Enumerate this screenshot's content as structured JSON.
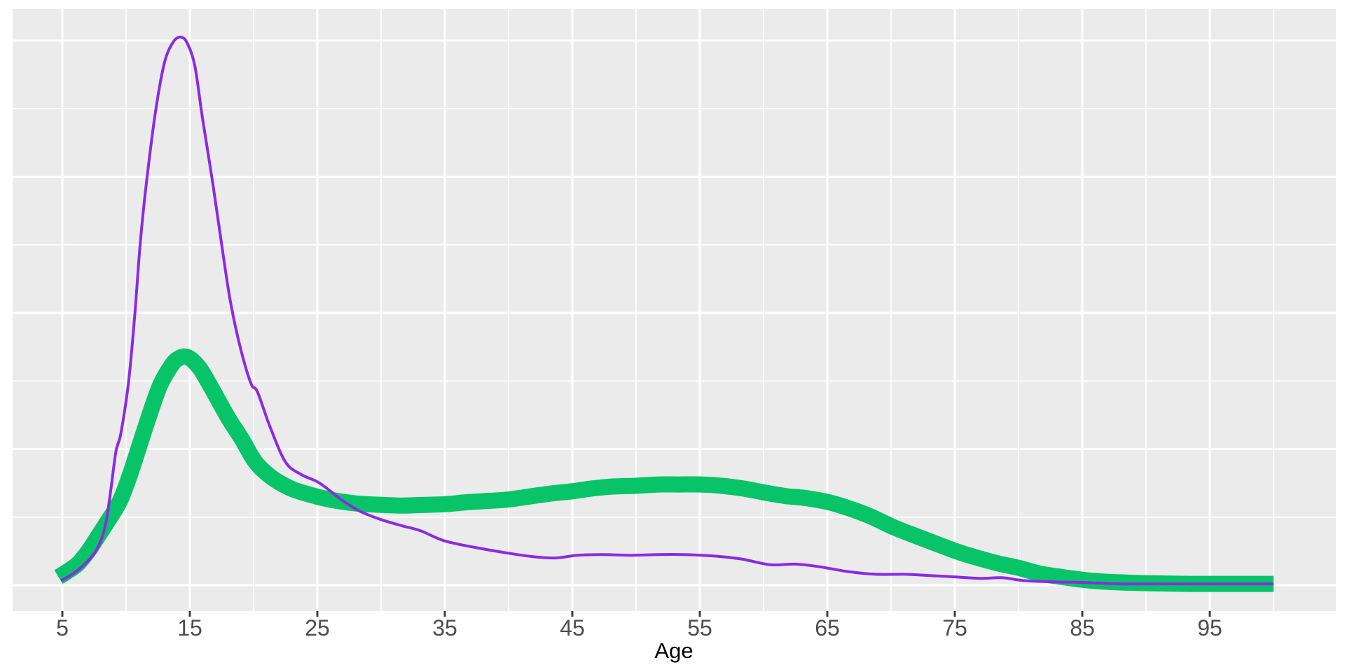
{
  "figure": {
    "kind": "density plot",
    "background": "#FFFFFF",
    "panel_background": "#EBEBEB",
    "grid_color": "#FFFFFF",
    "tick_mark_color": "#404040",
    "tick_label_color": "#4D4D4D",
    "axis_title_color": "#000000"
  },
  "x_axis": {
    "title": "Age",
    "tick_values": [
      5,
      15,
      25,
      35,
      45,
      55,
      65,
      75,
      85,
      95
    ],
    "tick_labels": [
      "5",
      "15",
      "25",
      "35",
      "45",
      "55",
      "65",
      "75",
      "85",
      "95"
    ],
    "minor_values": [
      10,
      20,
      30,
      40,
      50,
      60,
      70,
      80,
      90,
      100
    ]
  },
  "y_axis": {
    "title": "",
    "tick_labels": [],
    "major_values": [
      0,
      0.02,
      0.04,
      0.06,
      0.08
    ],
    "minor_values": [
      0.01,
      0.03,
      0.05,
      0.07
    ]
  },
  "chart_data": {
    "type": "line",
    "title": "",
    "xlabel": "Age",
    "ylabel": "",
    "x_range_shown": [
      5,
      100
    ],
    "ylim": [
      0,
      0.088
    ],
    "grid": true,
    "legend": "none",
    "series": [
      {
        "name": "green-thick-density",
        "color": "#07C468",
        "stroke_width": 23,
        "peak": {
          "age": 14.6,
          "density": 0.0336
        },
        "points": [
          [
            4.7,
            0.0012
          ],
          [
            5.3,
            0.0019
          ],
          [
            6.2,
            0.0031
          ],
          [
            7.0,
            0.0049
          ],
          [
            7.8,
            0.0072
          ],
          [
            8.6,
            0.0095
          ],
          [
            9.5,
            0.0123
          ],
          [
            10.3,
            0.0162
          ],
          [
            11.1,
            0.0208
          ],
          [
            11.9,
            0.0254
          ],
          [
            12.7,
            0.0295
          ],
          [
            13.6,
            0.0324
          ],
          [
            14.1,
            0.0333
          ],
          [
            14.6,
            0.0336
          ],
          [
            15.1,
            0.0332
          ],
          [
            15.8,
            0.0318
          ],
          [
            16.6,
            0.0293
          ],
          [
            17.4,
            0.0266
          ],
          [
            18.2,
            0.024
          ],
          [
            19.1,
            0.0214
          ],
          [
            20.1,
            0.0182
          ],
          [
            21.1,
            0.0163
          ],
          [
            22.1,
            0.015
          ],
          [
            23.2,
            0.014
          ],
          [
            25.0,
            0.013
          ],
          [
            26.5,
            0.0124
          ],
          [
            28.1,
            0.012
          ],
          [
            30.0,
            0.0118
          ],
          [
            31.7,
            0.0117
          ],
          [
            33.4,
            0.0118
          ],
          [
            35.0,
            0.0119
          ],
          [
            36.8,
            0.0122
          ],
          [
            38.6,
            0.0124
          ],
          [
            40.0,
            0.0126
          ],
          [
            41.9,
            0.0131
          ],
          [
            43.5,
            0.0135
          ],
          [
            45.0,
            0.0138
          ],
          [
            46.5,
            0.0142
          ],
          [
            48.2,
            0.0145
          ],
          [
            50.0,
            0.0146
          ],
          [
            51.8,
            0.0148
          ],
          [
            53.4,
            0.0148
          ],
          [
            55.1,
            0.0148
          ],
          [
            56.7,
            0.0146
          ],
          [
            58.4,
            0.0142
          ],
          [
            60.1,
            0.0136
          ],
          [
            61.7,
            0.0131
          ],
          [
            63.3,
            0.0128
          ],
          [
            65.1,
            0.0122
          ],
          [
            66.7,
            0.0113
          ],
          [
            68.4,
            0.0101
          ],
          [
            70.1,
            0.0086
          ],
          [
            71.7,
            0.0074
          ],
          [
            73.4,
            0.0062
          ],
          [
            75.1,
            0.005
          ],
          [
            76.8,
            0.004
          ],
          [
            78.4,
            0.0032
          ],
          [
            80.1,
            0.0025
          ],
          [
            81.7,
            0.0017
          ],
          [
            83.4,
            0.0012
          ],
          [
            85.0,
            0.0008
          ],
          [
            86.9,
            0.0005
          ],
          [
            90.0,
            0.0003
          ],
          [
            93.5,
            0.0002
          ],
          [
            96.8,
            0.0002
          ],
          [
            100.0,
            0.0002
          ]
        ]
      },
      {
        "name": "purple-thin-density",
        "color": "#8A2BE2",
        "stroke_width": 4,
        "peak": {
          "age": 14.3,
          "density": 0.0805
        },
        "points": [
          [
            4.9,
            0.0007
          ],
          [
            5.6,
            0.0014
          ],
          [
            6.4,
            0.0025
          ],
          [
            7.3,
            0.0042
          ],
          [
            7.9,
            0.006
          ],
          [
            8.4,
            0.009
          ],
          [
            8.8,
            0.014
          ],
          [
            9.2,
            0.0196
          ],
          [
            9.6,
            0.0224
          ],
          [
            10.2,
            0.0299
          ],
          [
            10.7,
            0.0401
          ],
          [
            11.1,
            0.05
          ],
          [
            11.6,
            0.0592
          ],
          [
            12.3,
            0.0695
          ],
          [
            13.0,
            0.0767
          ],
          [
            13.7,
            0.0798
          ],
          [
            14.3,
            0.0805
          ],
          [
            14.8,
            0.0796
          ],
          [
            15.4,
            0.0762
          ],
          [
            16.0,
            0.0685
          ],
          [
            16.8,
            0.059
          ],
          [
            17.5,
            0.05
          ],
          [
            18.2,
            0.0415
          ],
          [
            19.0,
            0.0346
          ],
          [
            19.8,
            0.0296
          ],
          [
            20.3,
            0.0284
          ],
          [
            21.3,
            0.0232
          ],
          [
            22.5,
            0.0181
          ],
          [
            23.7,
            0.0163
          ],
          [
            25.0,
            0.0152
          ],
          [
            25.9,
            0.014
          ],
          [
            27.0,
            0.0124
          ],
          [
            28.3,
            0.0109
          ],
          [
            29.9,
            0.0097
          ],
          [
            31.7,
            0.0087
          ],
          [
            33.1,
            0.008
          ],
          [
            35.0,
            0.0065
          ],
          [
            37.5,
            0.0055
          ],
          [
            40.0,
            0.0047
          ],
          [
            41.9,
            0.0042
          ],
          [
            43.7,
            0.004
          ],
          [
            45.4,
            0.0044
          ],
          [
            47.4,
            0.0045
          ],
          [
            49.6,
            0.0044
          ],
          [
            51.8,
            0.0045
          ],
          [
            53.7,
            0.0045
          ],
          [
            55.1,
            0.0044
          ],
          [
            56.7,
            0.0042
          ],
          [
            58.4,
            0.0038
          ],
          [
            60.5,
            0.003
          ],
          [
            62.5,
            0.0031
          ],
          [
            64.4,
            0.0027
          ],
          [
            66.6,
            0.002
          ],
          [
            68.8,
            0.0016
          ],
          [
            71.0,
            0.0016
          ],
          [
            73.2,
            0.0014
          ],
          [
            75.1,
            0.0012
          ],
          [
            77.0,
            0.001
          ],
          [
            78.7,
            0.0011
          ],
          [
            80.3,
            0.0007
          ],
          [
            82.5,
            0.0005
          ],
          [
            85.0,
            0.0004
          ],
          [
            88.0,
            0.0002
          ],
          [
            92.4,
            0.0002
          ],
          [
            96.2,
            0.0002
          ],
          [
            100.0,
            0.0002
          ]
        ]
      }
    ]
  }
}
